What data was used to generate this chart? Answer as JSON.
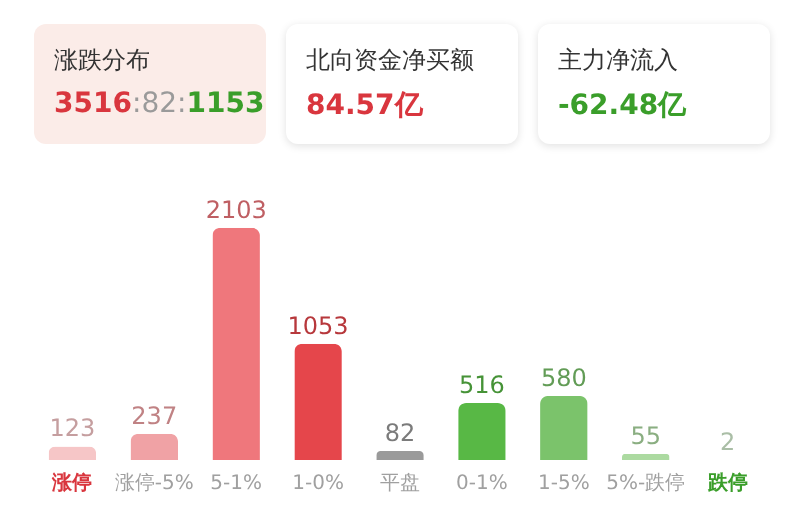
{
  "chart_data": {
    "type": "bar",
    "categories": [
      "涨停",
      "涨停-5%",
      "5-1%",
      "1-0%",
      "平盘",
      "0-1%",
      "1-5%",
      "5%-跌停",
      "跌停"
    ],
    "values": [
      123,
      237,
      2103,
      1053,
      82,
      516,
      580,
      55,
      2
    ],
    "colors": [
      "#f6c6c7",
      "#f0a2a5",
      "#ef777c",
      "#e5464b",
      "#9a9a9a",
      "#58b845",
      "#7bc36b",
      "#acdaa1",
      "#d5eed0"
    ],
    "data_labels": true,
    "grid": false,
    "annotations": [
      "涨跌分布",
      "3516:82:1153",
      "北向资金净买额",
      "84.57亿",
      "主力净流入",
      "-62.48亿"
    ]
  }
}
